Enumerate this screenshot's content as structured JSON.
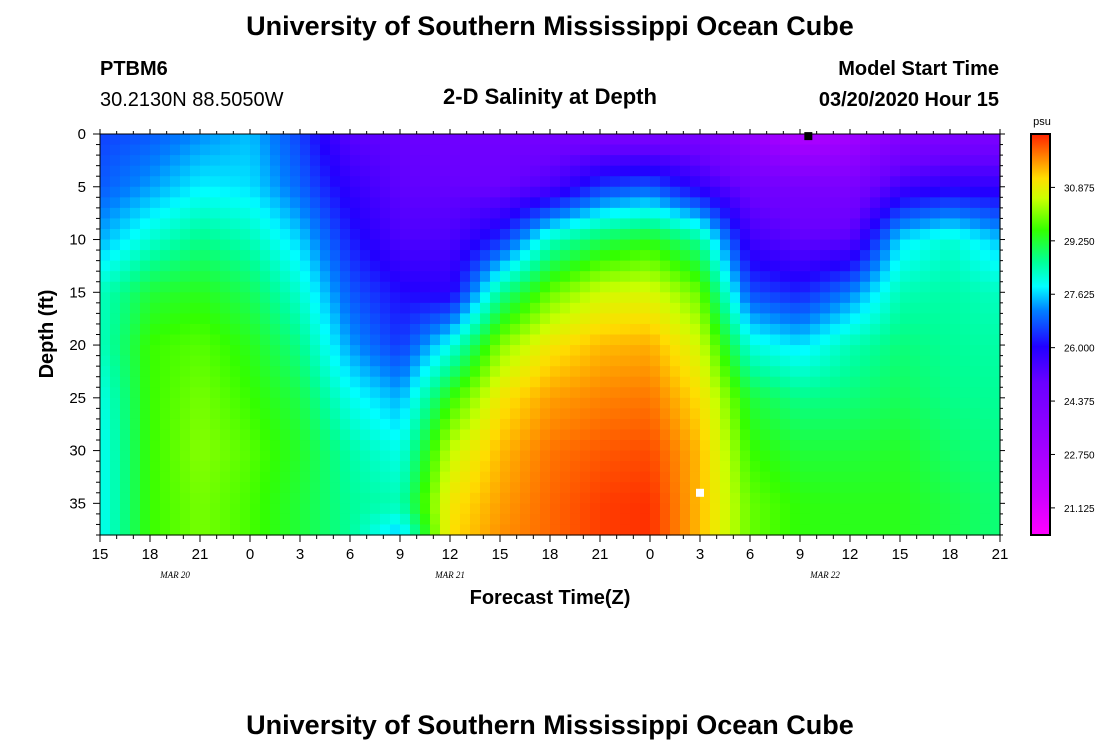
{
  "header": {
    "title": "University of Southern Mississippi Ocean Cube",
    "station": "PTBM6",
    "coords": "30.2130N 88.5050W",
    "plot_title": "2-D Salinity at Depth",
    "model_start_label": "Model Start Time",
    "model_start_value": "03/20/2020 Hour 15"
  },
  "footer": {
    "title": "University of Southern Mississippi Ocean Cube"
  },
  "chart_data": {
    "type": "heatmap",
    "title": "2-D Salinity at Depth",
    "xlabel": "Forecast Time(Z)",
    "ylabel": "Depth (ft)",
    "x_range_hours": [
      0,
      54
    ],
    "y_range_ft": [
      0,
      38
    ],
    "x_ticks": [
      "15",
      "18",
      "21",
      "0",
      "3",
      "6",
      "9",
      "12",
      "15",
      "18",
      "21",
      "0",
      "3",
      "6",
      "9",
      "12",
      "15",
      "18",
      "21"
    ],
    "date_labels": [
      {
        "label": "MAR  20",
        "hour": 4.5
      },
      {
        "label": "MAR  21",
        "hour": 21
      },
      {
        "label": "MAR  22",
        "hour": 43.5
      }
    ],
    "y_ticks": [
      "0",
      "5",
      "10",
      "15",
      "20",
      "25",
      "30",
      "35"
    ],
    "y_tick_values": [
      0,
      5,
      10,
      15,
      20,
      25,
      30,
      35
    ],
    "colorbar": {
      "unit": "psu",
      "min": 20.3,
      "max": 32.5,
      "tick_values": [
        30.875,
        29.25,
        27.625,
        26.0,
        24.375,
        22.75,
        21.125
      ],
      "tick_labels": [
        "30.875",
        "29.250",
        "27.625",
        "26.000",
        "24.375",
        "22.750",
        "21.125"
      ]
    },
    "profiles": {
      "hours": [
        0,
        3,
        6,
        9,
        12,
        15,
        18,
        21,
        24,
        27,
        30,
        33,
        36,
        39,
        42,
        45,
        48,
        51,
        54
      ],
      "depths_ft": [
        0,
        5,
        10,
        15,
        20,
        25,
        30,
        35,
        38
      ],
      "salinity_psu": [
        [
          26.6,
          26.8,
          27.4,
          28.3,
          28.3,
          28.0,
          27.9,
          27.9,
          27.9
        ],
        [
          26.8,
          27.3,
          28.2,
          29.2,
          29.6,
          29.6,
          29.6,
          29.6,
          29.6
        ],
        [
          27.2,
          27.8,
          28.7,
          29.4,
          29.8,
          30.0,
          30.1,
          30.0,
          30.0
        ],
        [
          27.5,
          27.7,
          28.4,
          29.0,
          29.4,
          29.6,
          29.8,
          29.7,
          29.7
        ],
        [
          26.6,
          26.9,
          27.6,
          28.2,
          28.7,
          29.1,
          29.3,
          29.2,
          29.2
        ],
        [
          25.2,
          25.8,
          26.3,
          26.8,
          27.3,
          28.0,
          28.5,
          28.6,
          28.6
        ],
        [
          25.0,
          25.1,
          25.4,
          26.1,
          26.5,
          27.4,
          28.0,
          28.4,
          27.5
        ],
        [
          24.8,
          25.0,
          25.4,
          25.9,
          28.0,
          29.5,
          30.5,
          31.0,
          31.1
        ],
        [
          24.6,
          24.9,
          26.4,
          28.6,
          30.1,
          31.0,
          31.4,
          31.6,
          31.7
        ],
        [
          24.5,
          25.4,
          28.3,
          29.9,
          31.0,
          31.6,
          31.9,
          32.0,
          32.0
        ],
        [
          24.4,
          26.5,
          29.0,
          30.6,
          31.4,
          31.8,
          32.1,
          32.3,
          32.3
        ],
        [
          24.4,
          26.8,
          29.4,
          30.7,
          31.5,
          31.9,
          32.2,
          32.4,
          32.4
        ],
        [
          24.4,
          25.8,
          28.6,
          29.9,
          30.6,
          31.1,
          31.4,
          31.4,
          31.4
        ],
        [
          23.4,
          24.8,
          25.6,
          26.7,
          28.1,
          29.2,
          29.6,
          29.9,
          29.9
        ],
        [
          22.4,
          24.5,
          25.1,
          26.3,
          27.7,
          28.7,
          29.2,
          29.5,
          29.5
        ],
        [
          22.9,
          24.3,
          25.2,
          27.1,
          28.4,
          28.8,
          29.2,
          29.4,
          29.4
        ],
        [
          24.0,
          25.6,
          27.7,
          28.4,
          28.8,
          29.0,
          29.3,
          29.4,
          29.4
        ],
        [
          24.2,
          25.9,
          28.2,
          28.5,
          28.6,
          28.7,
          28.9,
          29.1,
          29.1
        ],
        [
          24.3,
          25.8,
          27.5,
          28.3,
          28.5,
          28.6,
          28.7,
          28.8,
          28.8
        ]
      ]
    },
    "markers": [
      {
        "hour": 42.5,
        "depth_ft": 0.2,
        "color": "#000000"
      },
      {
        "hour": 36.0,
        "depth_ft": 34.0,
        "color": "#ffffff"
      }
    ]
  }
}
